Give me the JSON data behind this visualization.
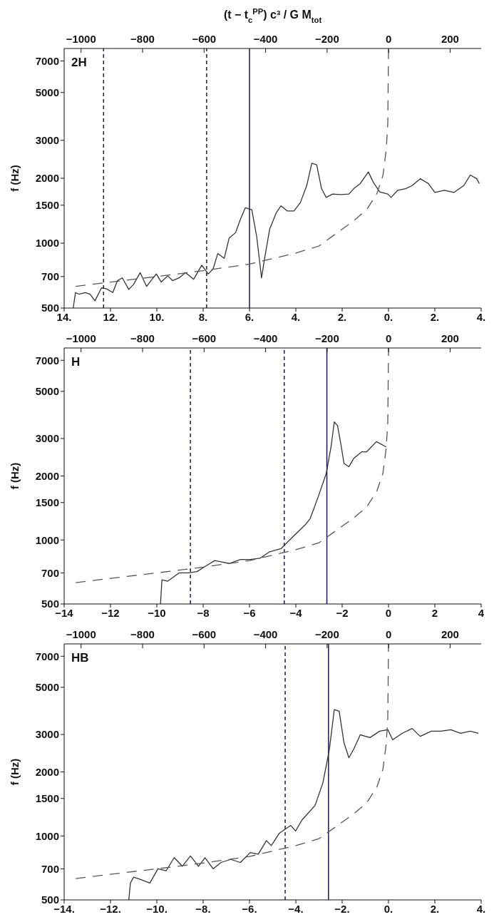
{
  "chart_data": [
    {
      "type": "line",
      "x2label": "(t − t$_{c}$$^{PP}$) c³ / G M$_{tot}$",
      "ylabel": "f (Hz)",
      "annotations": [
        "2H"
      ],
      "xlim": [
        -14,
        4
      ],
      "xticks": [
        {
          "value": -14,
          "label": "14."
        },
        {
          "value": -12,
          "label": "12."
        },
        {
          "value": -10,
          "label": "10."
        },
        {
          "value": -8,
          "label": "8."
        },
        {
          "value": -6,
          "label": "6."
        },
        {
          "value": -4,
          "label": "4."
        },
        {
          "value": -2,
          "label": "2."
        },
        {
          "value": 0,
          "label": "0."
        },
        {
          "value": 2,
          "label": "2."
        },
        {
          "value": 4,
          "label": "4."
        }
      ],
      "x2lim": [
        -1055,
        301
      ],
      "x2ticks": [
        -1000,
        -800,
        -600,
        -400,
        -200,
        0,
        200
      ],
      "ylim": [
        500,
        8000
      ],
      "yticks": [
        500,
        700,
        1000,
        1500,
        2000,
        3000,
        5000,
        7000
      ],
      "log": "y",
      "ref_lines": [
        {
          "axis": "x",
          "value": -12.3,
          "color": "#1a1a4e",
          "line_style": "dashed"
        },
        {
          "axis": "x",
          "value": -7.85,
          "color": "#1a1a4e",
          "line_style": "dashed"
        },
        {
          "axis": "x",
          "value": -6.0,
          "color": "#1a1a4e",
          "line_style": "solid"
        }
      ],
      "series": [
        {
          "color": "#333333",
          "line_style": "solid",
          "x": [
            -13.61,
            -13.51,
            -13.37,
            -13.09,
            -12.88,
            -12.67,
            -12.39,
            -12.18,
            -11.9,
            -11.7,
            -11.49,
            -11.21,
            -11.0,
            -10.72,
            -10.44,
            -10.16,
            -10.02,
            -9.81,
            -9.53,
            -9.32,
            -9.04,
            -8.76,
            -8.41,
            -8.06,
            -7.78,
            -7.57,
            -7.37,
            -7.09,
            -6.88,
            -6.6,
            -6.39,
            -6.18,
            -5.9,
            -5.69,
            -5.48,
            -5.34,
            -5.13,
            -4.85,
            -4.64,
            -4.36,
            -4.08,
            -3.8,
            -3.53,
            -3.31,
            -3.1,
            -2.89,
            -2.69,
            -2.41,
            -2.06,
            -1.71,
            -1.5,
            -1.22,
            -0.87,
            -0.66,
            -0.38,
            -0.03,
            0.11,
            0.4,
            0.74,
            1.02,
            1.37,
            1.72,
            2.0,
            2.41,
            2.83,
            3.25,
            3.53,
            3.81,
            3.92
          ],
          "values": [
            500,
            590,
            580,
            590,
            580,
            540,
            620,
            615,
            590,
            670,
            690,
            610,
            645,
            730,
            630,
            690,
            720,
            660,
            705,
            670,
            690,
            730,
            680,
            790,
            720,
            760,
            895,
            850,
            1055,
            1120,
            1290,
            1460,
            1430,
            1075,
            690,
            860,
            1160,
            1380,
            1490,
            1410,
            1410,
            1545,
            1850,
            2350,
            2310,
            1790,
            1630,
            1690,
            1680,
            1690,
            1790,
            1890,
            2140,
            1920,
            1730,
            1690,
            1630,
            1760,
            1790,
            1850,
            1990,
            1890,
            1720,
            1760,
            1720,
            1850,
            2070,
            1990,
            1890
          ]
        },
        {
          "color": "#555555",
          "line_style": "dashed",
          "x": [
            -13.5,
            -12,
            -10,
            -8,
            -6,
            -4,
            -3,
            -2.2,
            -1.5,
            -0.94,
            -0.5,
            -0.24,
            -0.1,
            -0.03,
            0
          ],
          "values": [
            630,
            660,
            700,
            745,
            800,
            900,
            970,
            1120,
            1270,
            1430,
            1700,
            2060,
            2700,
            3600,
            8000
          ]
        }
      ]
    },
    {
      "type": "line",
      "ylabel": "f (Hz)",
      "annotations": [
        "H"
      ],
      "xlim": [
        -14,
        4
      ],
      "xticks": [
        -14,
        -12,
        -10,
        -8,
        -6,
        -4,
        -2,
        0,
        2,
        4
      ],
      "x2lim": [
        -1055,
        301
      ],
      "x2ticks": [
        -1000,
        -800,
        -600,
        -400,
        -200,
        0,
        200
      ],
      "ylim": [
        500,
        8000
      ],
      "yticks": [
        500,
        700,
        1000,
        1500,
        2000,
        3000,
        5000,
        7000
      ],
      "log": "y",
      "ref_lines": [
        {
          "axis": "x",
          "value": -8.55,
          "color": "#1a1a4e",
          "line_style": "dashed"
        },
        {
          "axis": "x",
          "value": -4.5,
          "color": "#1a1a4e",
          "line_style": "dashed"
        },
        {
          "axis": "x",
          "value": -2.66,
          "color": "#1a1a4e",
          "line_style": "solid"
        }
      ],
      "series": [
        {
          "color": "#333333",
          "line_style": "solid",
          "x": [
            -9.84,
            -9.78,
            -9.53,
            -9.04,
            -8.62,
            -8.27,
            -7.92,
            -7.5,
            -7.23,
            -6.88,
            -6.39,
            -5.97,
            -5.55,
            -5.13,
            -4.64,
            -4.15,
            -3.59,
            -3.38,
            -3.03,
            -2.69,
            -2.48,
            -2.34,
            -2.2,
            -2.06,
            -1.92,
            -1.71,
            -1.5,
            -1.15,
            -0.94,
            -0.52,
            -0.1
          ],
          "values": [
            500,
            650,
            640,
            700,
            700,
            710,
            750,
            800,
            790,
            775,
            810,
            810,
            820,
            880,
            910,
            1030,
            1180,
            1260,
            1600,
            2050,
            2740,
            3590,
            3450,
            2840,
            2290,
            2210,
            2420,
            2600,
            2600,
            2900,
            2740
          ]
        },
        {
          "color": "#555555",
          "line_style": "dashed",
          "x": [
            -13.5,
            -12,
            -10,
            -8,
            -6,
            -4,
            -3,
            -2.2,
            -1.5,
            -0.94,
            -0.5,
            -0.24,
            -0.1,
            -0.03,
            0
          ],
          "values": [
            630,
            660,
            700,
            745,
            800,
            900,
            970,
            1120,
            1270,
            1430,
            1700,
            2060,
            2700,
            3600,
            8000
          ]
        }
      ]
    },
    {
      "type": "line",
      "ylabel": "f (Hz)",
      "annotations": [
        "HB"
      ],
      "xlim": [
        -14,
        4
      ],
      "xticks": [
        {
          "value": -14,
          "label": "−14."
        },
        {
          "value": -12,
          "label": "−12."
        },
        {
          "value": -10,
          "label": "−10."
        },
        {
          "value": -8,
          "label": "−8."
        },
        {
          "value": -6,
          "label": "−6."
        },
        {
          "value": -4,
          "label": "−4."
        },
        {
          "value": -2,
          "label": "−2."
        },
        {
          "value": 0,
          "label": "0."
        },
        {
          "value": 2,
          "label": "2."
        },
        {
          "value": 4,
          "label": "4."
        }
      ],
      "x2lim": [
        -1055,
        301
      ],
      "x2ticks": [
        -1000,
        -800,
        -600,
        -400,
        -200,
        0,
        200
      ],
      "ylim": [
        500,
        8000
      ],
      "yticks": [
        500,
        700,
        1000,
        1500,
        2000,
        3000,
        5000,
        7000
      ],
      "log": "y",
      "ref_lines": [
        {
          "axis": "x",
          "value": -4.46,
          "color": "#1a1a4e",
          "line_style": "dashed"
        },
        {
          "axis": "x",
          "value": -2.59,
          "color": "#1a1a4e",
          "line_style": "solid"
        }
      ],
      "series": [
        {
          "color": "#333333",
          "line_style": "solid",
          "x": [
            -11.21,
            -11.14,
            -11.0,
            -10.72,
            -10.3,
            -9.95,
            -9.6,
            -9.25,
            -8.9,
            -8.55,
            -8.2,
            -7.92,
            -7.57,
            -7.23,
            -6.81,
            -6.39,
            -5.97,
            -5.62,
            -5.27,
            -5.06,
            -4.71,
            -4.22,
            -4.01,
            -3.73,
            -3.17,
            -2.83,
            -2.55,
            -2.34,
            -2.13,
            -1.92,
            -1.71,
            -1.5,
            -1.22,
            -0.8,
            -0.38,
            -0.03,
            0.18,
            0.6,
            1.02,
            1.37,
            1.85,
            2.27,
            2.69,
            3.11,
            3.53,
            3.88
          ],
          "values": [
            500,
            600,
            640,
            625,
            600,
            700,
            685,
            790,
            720,
            805,
            720,
            790,
            700,
            750,
            775,
            750,
            835,
            820,
            950,
            900,
            1030,
            1120,
            1055,
            1190,
            1390,
            1780,
            2560,
            3930,
            3860,
            2740,
            2330,
            2560,
            2990,
            2900,
            3110,
            3160,
            2830,
            3040,
            3200,
            2940,
            3110,
            3110,
            3160,
            3040,
            3110,
            3040
          ]
        },
        {
          "color": "#555555",
          "line_style": "dashed",
          "x": [
            -13.5,
            -12,
            -10,
            -8,
            -6,
            -4,
            -3,
            -2.2,
            -1.5,
            -0.94,
            -0.5,
            -0.24,
            -0.1,
            -0.03,
            0
          ],
          "values": [
            630,
            660,
            700,
            745,
            800,
            900,
            970,
            1120,
            1270,
            1430,
            1700,
            2060,
            2700,
            3600,
            8000
          ]
        }
      ]
    }
  ]
}
